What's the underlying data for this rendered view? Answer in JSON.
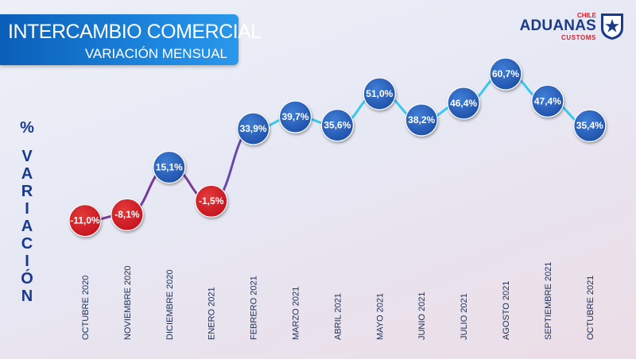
{
  "header": {
    "title": "INTERCAMBIO COMERCIAL",
    "subtitle": "VARIACIÓN MENSUAL"
  },
  "logo": {
    "top_text": "CHILE",
    "brand_text": "ADUANAS",
    "bottom_text": "CUSTOMS"
  },
  "y_axis_letters": [
    "%",
    "V",
    "A",
    "R",
    "I",
    "A",
    "C",
    "I",
    "Ó",
    "N"
  ],
  "colors": {
    "positive": "#1f4fa8",
    "negative": "#c4121e",
    "line_positive": "#3cc8ee",
    "line_negative": "#7a3b98",
    "banner": "#0a5fb8"
  },
  "chart_data": {
    "type": "line",
    "ylabel": "% VARIACIÓN",
    "categories": [
      "OCTUBRE 2020",
      "NOVIEMBRE 2020",
      "DICIEMBRE 2020",
      "ENERO 2021",
      "FEBRERO 2021",
      "MARZO 2021",
      "ABRIL 2021",
      "MAYO 2021",
      "JUNIO 2021",
      "JULIO 2021",
      "AGOSTO 2021",
      "SEPTIEMBRE 2021",
      "OCTUBRE 2021"
    ],
    "values": [
      -11.0,
      -8.1,
      15.1,
      -1.5,
      33.9,
      39.7,
      35.6,
      51.0,
      38.2,
      46.4,
      60.7,
      47.4,
      35.4
    ],
    "labels": [
      "-11,0%",
      "-8,1%",
      "15,1%",
      "-1,5%",
      "33,9%",
      "39,7%",
      "35,6%",
      "51,0%",
      "38,2%",
      "46,4%",
      "60,7%",
      "47,4%",
      "35,4%"
    ],
    "ylim": [
      -15,
      65
    ],
    "grid": false,
    "legend": "none"
  }
}
